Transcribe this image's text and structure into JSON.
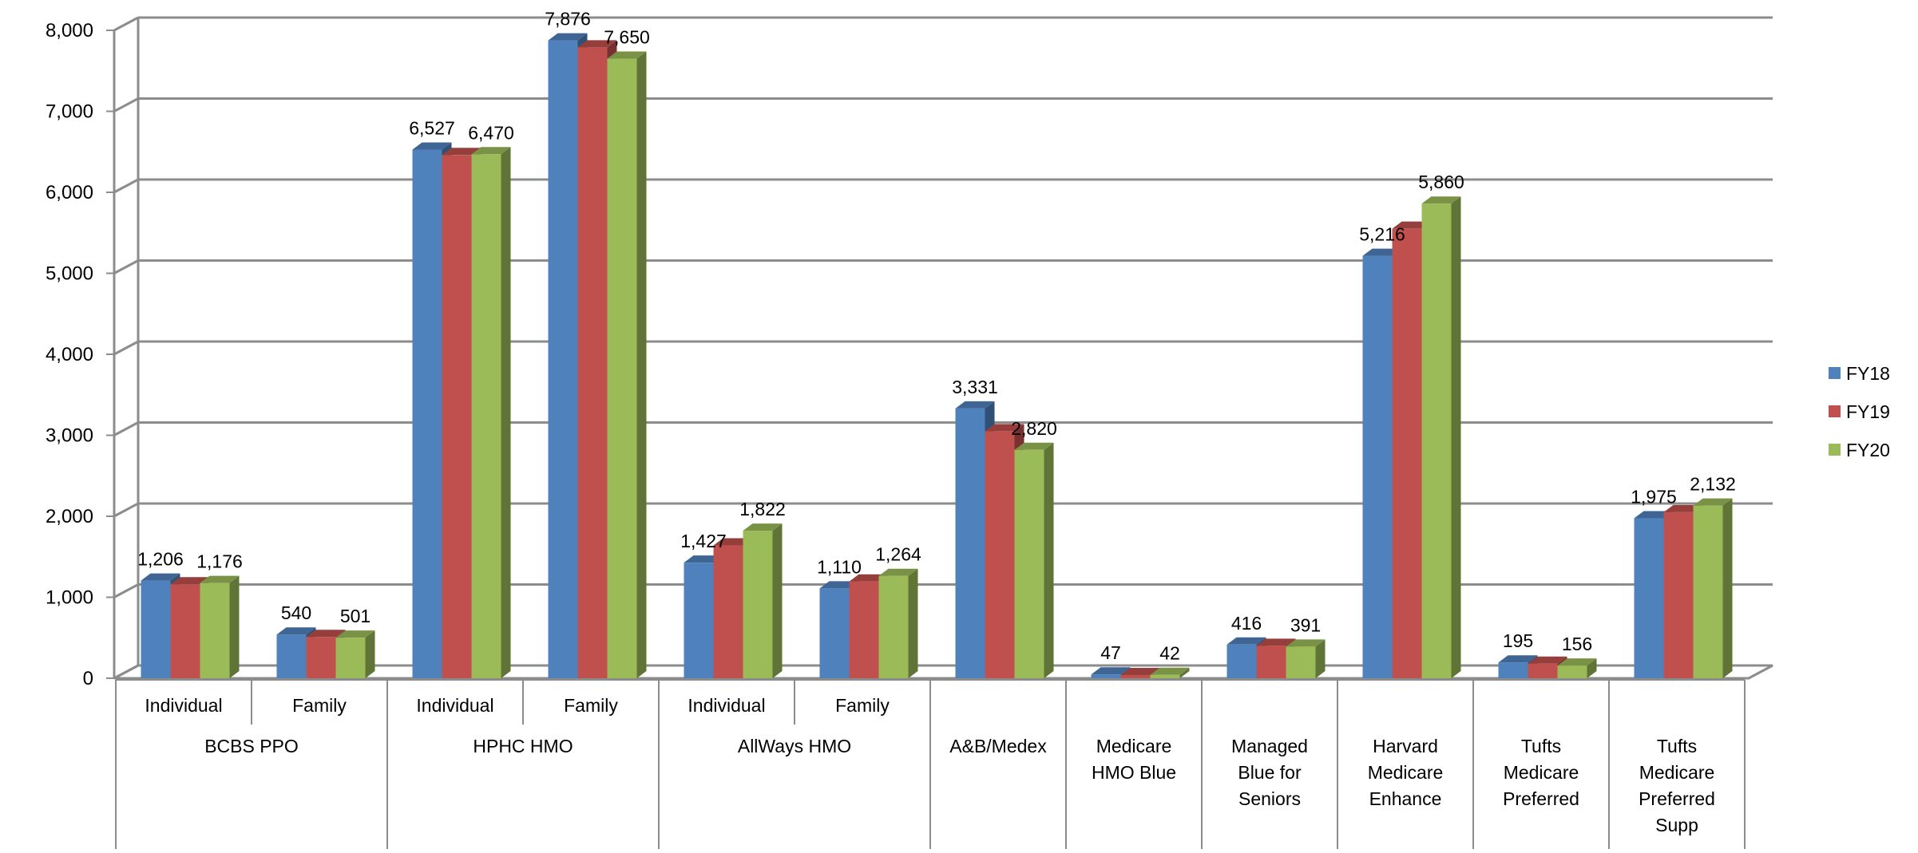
{
  "chart_data": {
    "type": "bar",
    "subtype": "clustered-3d",
    "title": "",
    "xlabel": "",
    "ylabel": "",
    "ylim": [
      0,
      8000
    ],
    "yticks": [
      0,
      1000,
      2000,
      3000,
      4000,
      5000,
      6000,
      7000,
      8000
    ],
    "ytick_labels": [
      "0",
      "1,000",
      "2,000",
      "3,000",
      "4,000",
      "5,000",
      "6,000",
      "7,000",
      "8,000"
    ],
    "grid": true,
    "legend_position": "right",
    "categories": [
      {
        "group": "BCBS PPO",
        "label": "Individual"
      },
      {
        "group": "BCBS PPO",
        "label": "Family"
      },
      {
        "group": "HPHC HMO",
        "label": "Individual"
      },
      {
        "group": "HPHC HMO",
        "label": "Family"
      },
      {
        "group": "AllWays HMO",
        "label": "Individual"
      },
      {
        "group": "AllWays HMO",
        "label": "Family"
      },
      {
        "group": "A&B/Medex",
        "label": ""
      },
      {
        "group": "Medicare HMO Blue",
        "label": ""
      },
      {
        "group": "Managed Blue for Seniors",
        "label": ""
      },
      {
        "group": "Harvard Medicare Enhance",
        "label": ""
      },
      {
        "group": "Tufts Medicare Preferred",
        "label": ""
      },
      {
        "group": "Tufts Medicare Preferred Supp",
        "label": ""
      }
    ],
    "groups": [
      {
        "name": "BCBS PPO",
        "lines": [
          "BCBS PPO"
        ],
        "span": 2
      },
      {
        "name": "HPHC HMO",
        "lines": [
          "HPHC HMO"
        ],
        "span": 2
      },
      {
        "name": "AllWays HMO",
        "lines": [
          "AllWays HMO"
        ],
        "span": 2
      },
      {
        "name": "A&B/Medex",
        "lines": [
          "A&B/Medex"
        ],
        "span": 1
      },
      {
        "name": "Medicare HMO Blue",
        "lines": [
          "Medicare",
          "HMO Blue"
        ],
        "span": 1
      },
      {
        "name": "Managed Blue for Seniors",
        "lines": [
          "Managed",
          "Blue for",
          "Seniors"
        ],
        "span": 1
      },
      {
        "name": "Harvard Medicare Enhance",
        "lines": [
          "Harvard",
          "Medicare",
          "Enhance"
        ],
        "span": 1
      },
      {
        "name": "Tufts Medicare Preferred",
        "lines": [
          "Tufts",
          "Medicare",
          "Preferred"
        ],
        "span": 1
      },
      {
        "name": "Tufts Medicare Preferred Supp",
        "lines": [
          "Tufts",
          "Medicare",
          "Preferred",
          "Supp"
        ],
        "span": 1
      }
    ],
    "series": [
      {
        "name": "FY18",
        "color": "#4F81BD",
        "values": [
          1206,
          540,
          6527,
          7876,
          1427,
          1110,
          3331,
          47,
          416,
          5216,
          195,
          1975
        ]
      },
      {
        "name": "FY19",
        "color": "#C0504D",
        "values": [
          1160,
          510,
          6460,
          7790,
          1640,
          1195,
          3050,
          40,
          400,
          5550,
          180,
          2050
        ]
      },
      {
        "name": "FY20",
        "color": "#9BBB59",
        "values": [
          1176,
          501,
          6470,
          7650,
          1822,
          1264,
          2820,
          42,
          391,
          5860,
          156,
          2132
        ]
      }
    ],
    "data_labels": [
      [
        {
          "series": 0,
          "text": "1,206"
        },
        {
          "series": 2,
          "text": "1,176"
        }
      ],
      [
        {
          "series": 0,
          "text": "540"
        },
        {
          "series": 2,
          "text": "501"
        }
      ],
      [
        {
          "series": 0,
          "text": "6,527"
        },
        {
          "series": 2,
          "text": "6,470"
        }
      ],
      [
        {
          "series": 0,
          "text": "7,876"
        },
        {
          "series": 2,
          "text": "7,650"
        }
      ],
      [
        {
          "series": 0,
          "text": "1,427"
        },
        {
          "series": 2,
          "text": "1,822"
        }
      ],
      [
        {
          "series": 0,
          "text": "1,110"
        },
        {
          "series": 2,
          "text": "1,264"
        }
      ],
      [
        {
          "series": 0,
          "text": "3,331"
        },
        {
          "series": 2,
          "text": "2,820"
        }
      ],
      [
        {
          "series": 0,
          "text": "47"
        },
        {
          "series": 2,
          "text": "42"
        }
      ],
      [
        {
          "series": 0,
          "text": "416"
        },
        {
          "series": 2,
          "text": "391"
        }
      ],
      [
        {
          "series": 0,
          "text": "5,216"
        },
        {
          "series": 2,
          "text": "5,860"
        }
      ],
      [
        {
          "series": 0,
          "text": "195"
        },
        {
          "series": 2,
          "text": "156"
        }
      ],
      [
        {
          "series": 0,
          "text": "1,975"
        },
        {
          "series": 2,
          "text": "2,132"
        }
      ]
    ]
  }
}
